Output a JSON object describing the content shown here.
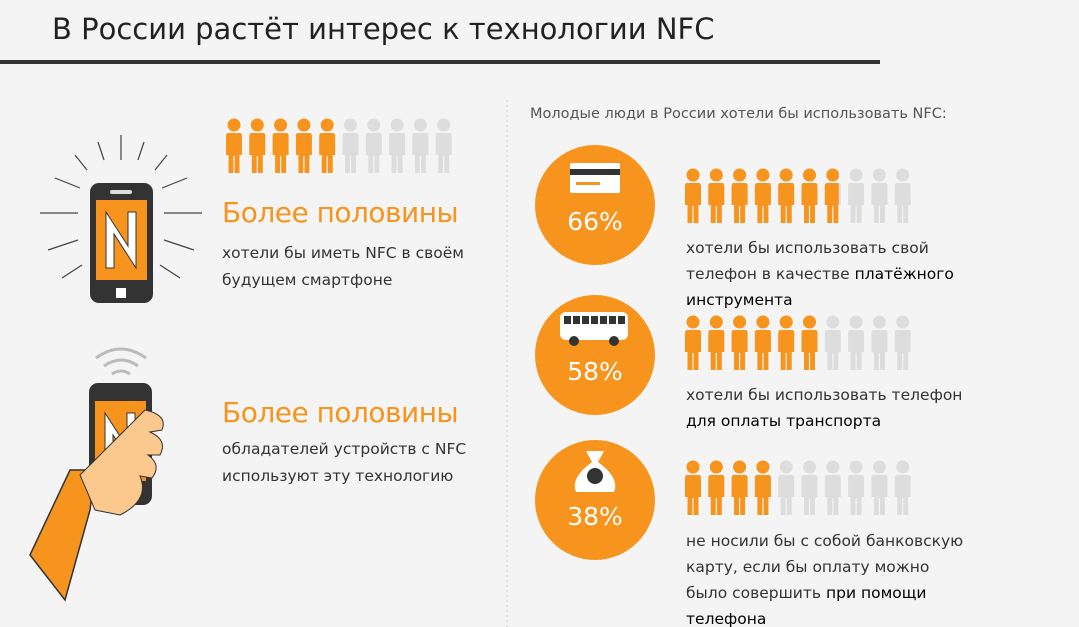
{
  "title": "В России растёт интерес к технологии NFC",
  "left": [
    {
      "headline": "Более половины",
      "text": "хотели бы иметь NFC в своём будущем смартфоне"
    },
    {
      "headline": "Более половины",
      "text": "обладателей устройств с NFC используют эту технологию"
    }
  ],
  "right_title": "Молодые люди в России хотели бы использовать NFC:",
  "stats": [
    {
      "value": 66,
      "value_label": "66%",
      "text": "хотели бы использовать свой телефон в качестве",
      "emphasis": "платёжного инструмента"
    },
    {
      "value": 58,
      "value_label": "58%",
      "text": "хотели бы использовать телефон",
      "emphasis": "для оплаты транспорта"
    },
    {
      "value": 38,
      "value_label": "38%",
      "text": "не носили бы с собой банковскую карту, если бы оплату можно было совершить",
      "emphasis": "при помощи телефона"
    }
  ]
}
